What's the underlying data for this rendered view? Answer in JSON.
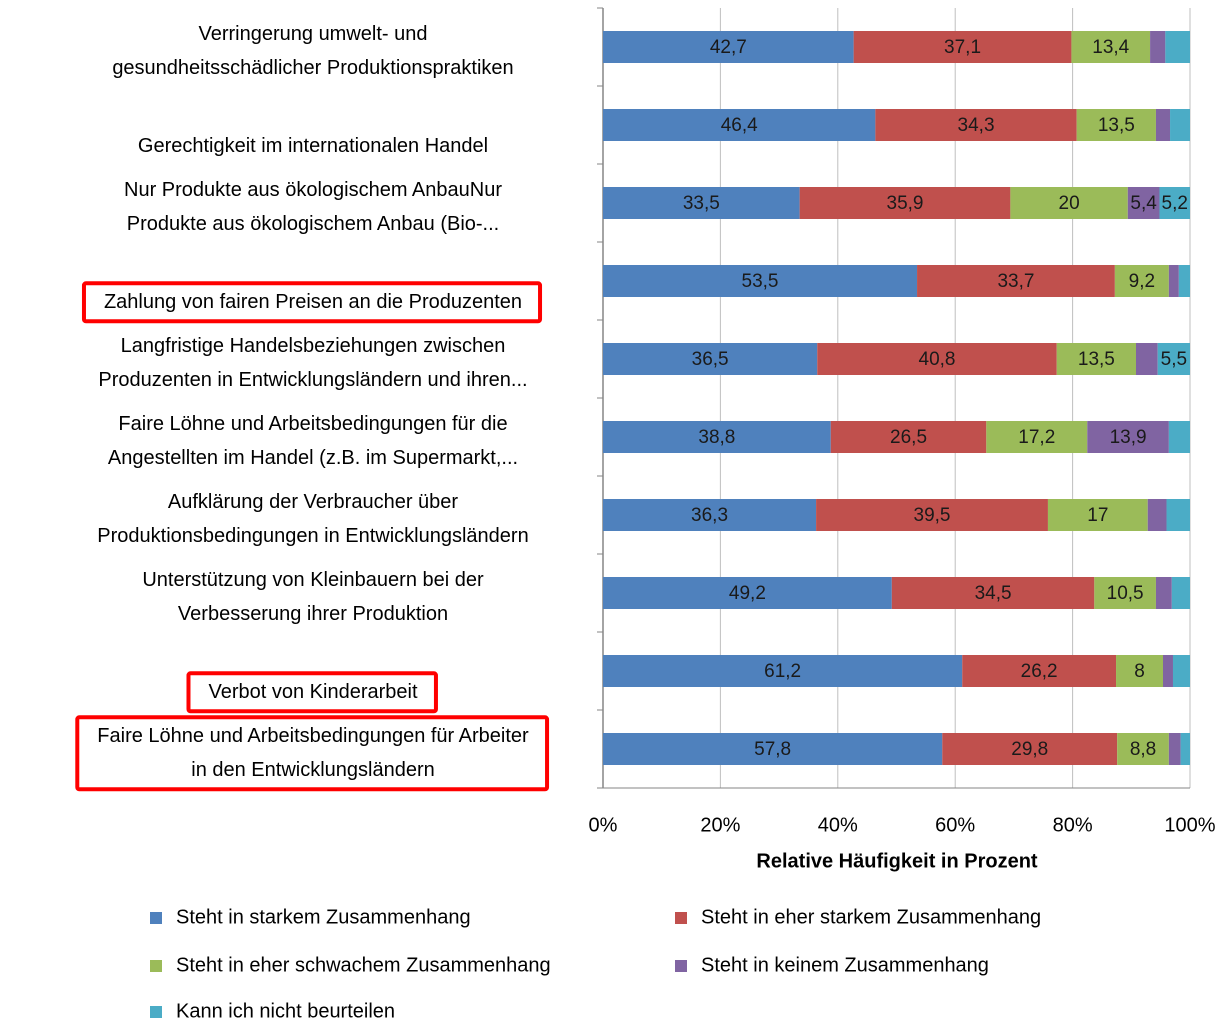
{
  "chart_data": {
    "type": "stacked_bar_horizontal",
    "x_label": "Relative Häufigkeit in Prozent",
    "categories": [
      "Verringerung umwelt- und\ngesundheitsschädlicher Produktionspraktiken",
      "Gerechtigkeit im internationalen Handel",
      "Nur Produkte aus ökologischem AnbauNur\nProdukte aus ökologischem Anbau (Bio-...",
      "Zahlung von fairen Preisen an die Produzenten",
      "Langfristige Handelsbeziehungen zwischen\nProduzenten in Entwicklungsländern und ihren...",
      "Faire Löhne und Arbeitsbedingungen für die\nAngestellten im Handel (z.B. im Supermarkt,...",
      "Aufklärung der Verbraucher über\nProduktionsbedingungen in Entwicklungsländern",
      "Unterstützung von Kleinbauern bei der\nVerbesserung ihrer Produktion",
      "Verbot von Kinderarbeit",
      "Faire Löhne und Arbeitsbedingungen für Arbeiter\nin den Entwicklungsländern"
    ],
    "highlighted_categories": [
      3,
      8,
      9
    ],
    "highlight_color": "#ff0000",
    "series": [
      {
        "name": "Steht in starkem Zusammenhang",
        "color": "#4f81bd",
        "values": [
          42.7,
          46.4,
          33.5,
          53.5,
          36.5,
          38.8,
          36.3,
          49.2,
          61.2,
          57.8
        ],
        "value_labels": [
          "42,7",
          "46,4",
          "33,5",
          "53,5",
          "36,5",
          "38,8",
          "36,3",
          "49,2",
          "61,2",
          "57,8"
        ]
      },
      {
        "name": "Steht in eher starkem Zusammenhang",
        "color": "#c0504d",
        "values": [
          37.1,
          34.3,
          35.9,
          33.7,
          40.8,
          26.5,
          39.5,
          34.5,
          26.2,
          29.8
        ],
        "value_labels": [
          "37,1",
          "34,3",
          "35,9",
          "33,7",
          "40,8",
          "26,5",
          "39,5",
          "34,5",
          "26,2",
          "29,8"
        ]
      },
      {
        "name": "Steht in eher schwachem Zusammenhang",
        "color": "#9bbb59",
        "values": [
          13.4,
          13.5,
          20,
          9.2,
          13.5,
          17.2,
          17,
          10.5,
          8,
          8.8
        ],
        "value_labels": [
          "13,4",
          "13,5",
          "20",
          "9,2",
          "13,5",
          "17,2",
          "17",
          "10,5",
          "8",
          "8,8"
        ]
      },
      {
        "name": "Steht in keinem Zusammenhang",
        "color": "#8064a2",
        "values": [
          2.6,
          2.4,
          5.4,
          1.7,
          3.7,
          13.9,
          3.2,
          2.7,
          1.7,
          2.0
        ],
        "value_labels": [
          null,
          null,
          "5,4",
          null,
          null,
          "13,9",
          null,
          null,
          null,
          null
        ]
      },
      {
        "name": "Kann ich nicht beurteilen",
        "color": "#4bacc6",
        "values": [
          4.2,
          3.4,
          5.2,
          1.9,
          5.5,
          3.6,
          4.0,
          3.1,
          2.9,
          1.6
        ],
        "value_labels": [
          null,
          null,
          "5,2",
          null,
          "5,5",
          null,
          null,
          null,
          null,
          null
        ]
      }
    ],
    "xlim": [
      0,
      100
    ],
    "xticks": [
      {
        "value": 0,
        "label": "0%"
      },
      {
        "value": 20,
        "label": "20%"
      },
      {
        "value": 40,
        "label": "40%"
      },
      {
        "value": 60,
        "label": "60%"
      },
      {
        "value": 80,
        "label": "80%"
      },
      {
        "value": 100,
        "label": "100%"
      }
    ],
    "grid": true
  }
}
